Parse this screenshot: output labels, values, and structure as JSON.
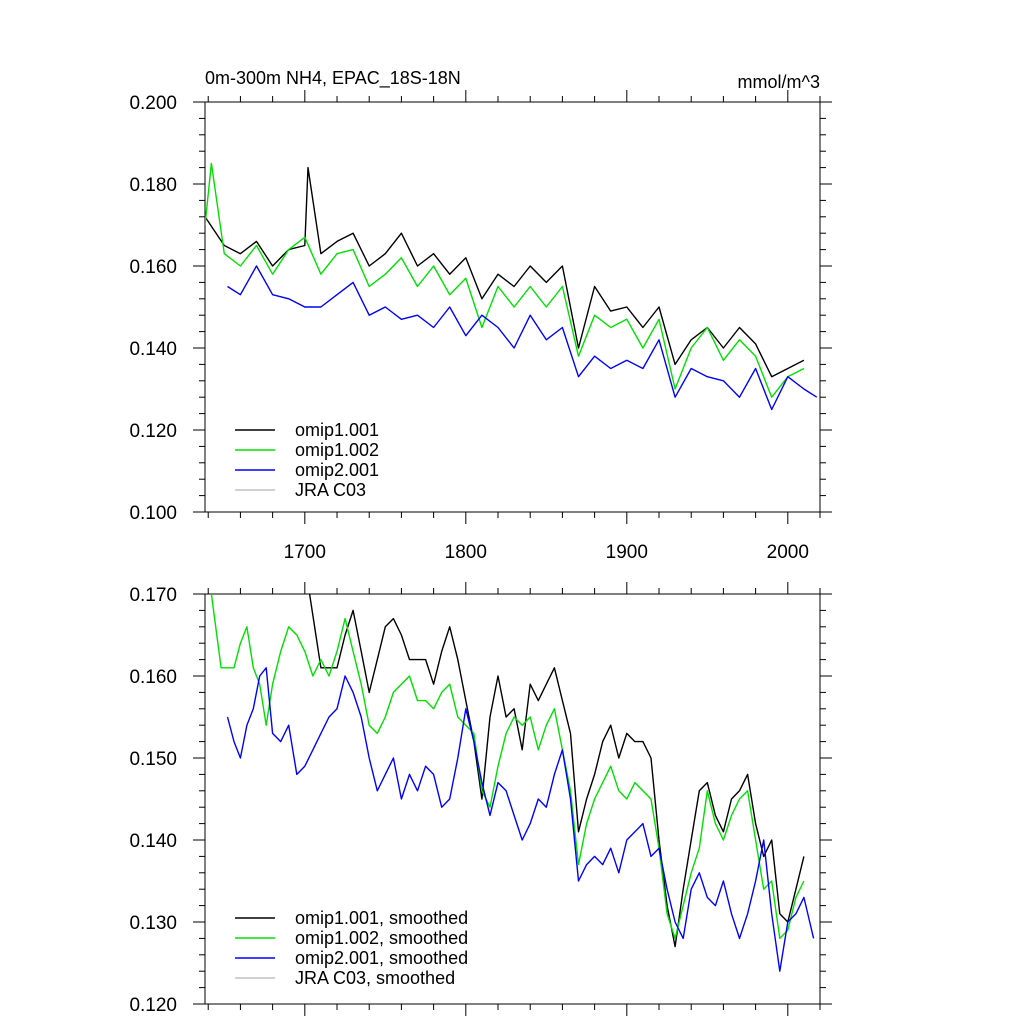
{
  "chart_data": [
    {
      "type": "line",
      "title": "0m-300m NH4, EPAC_18S-18N",
      "units": "mmol/m^3",
      "xlim": [
        1638,
        2020
      ],
      "ylim": [
        0.1,
        0.2
      ],
      "xticks": [
        1700,
        1800,
        1900,
        2000
      ],
      "yticks": [
        0.1,
        0.12,
        0.14,
        0.16,
        0.18,
        0.2
      ],
      "ytick_labels": [
        "0.100",
        "0.120",
        "0.140",
        "0.160",
        "0.180",
        "0.200"
      ],
      "legend_position": "bottom-left",
      "series": [
        {
          "name": "omip1.001",
          "color": "#000000",
          "x": [
            1638,
            1650,
            1660,
            1670,
            1680,
            1690,
            1700,
            1702,
            1710,
            1720,
            1730,
            1740,
            1750,
            1760,
            1770,
            1780,
            1790,
            1800,
            1810,
            1820,
            1830,
            1840,
            1850,
            1860,
            1870,
            1880,
            1890,
            1900,
            1910,
            1920,
            1930,
            1940,
            1950,
            1960,
            1970,
            1980,
            1990,
            2000,
            2010
          ],
          "y": [
            0.172,
            0.165,
            0.163,
            0.166,
            0.16,
            0.164,
            0.165,
            0.184,
            0.163,
            0.166,
            0.168,
            0.16,
            0.163,
            0.168,
            0.16,
            0.163,
            0.158,
            0.162,
            0.152,
            0.158,
            0.155,
            0.16,
            0.156,
            0.16,
            0.14,
            0.155,
            0.149,
            0.15,
            0.145,
            0.15,
            0.136,
            0.142,
            0.145,
            0.14,
            0.145,
            0.141,
            0.133,
            0.135,
            0.137
          ]
        },
        {
          "name": "omip1.002",
          "color": "#00e000",
          "x": [
            1638,
            1642,
            1650,
            1660,
            1670,
            1680,
            1690,
            1700,
            1710,
            1720,
            1730,
            1740,
            1750,
            1760,
            1770,
            1780,
            1790,
            1800,
            1810,
            1820,
            1830,
            1840,
            1850,
            1860,
            1870,
            1880,
            1890,
            1900,
            1910,
            1920,
            1930,
            1940,
            1950,
            1960,
            1970,
            1980,
            1990,
            2000,
            2010
          ],
          "y": [
            0.17,
            0.185,
            0.163,
            0.16,
            0.165,
            0.158,
            0.164,
            0.167,
            0.158,
            0.163,
            0.164,
            0.155,
            0.158,
            0.162,
            0.155,
            0.16,
            0.153,
            0.157,
            0.145,
            0.155,
            0.15,
            0.155,
            0.15,
            0.155,
            0.138,
            0.148,
            0.145,
            0.147,
            0.14,
            0.147,
            0.13,
            0.14,
            0.145,
            0.137,
            0.142,
            0.138,
            0.128,
            0.133,
            0.135
          ]
        },
        {
          "name": "omip2.001",
          "color": "#0000ff",
          "x": [
            1652,
            1660,
            1670,
            1680,
            1690,
            1700,
            1710,
            1720,
            1730,
            1740,
            1750,
            1760,
            1770,
            1780,
            1790,
            1800,
            1810,
            1820,
            1830,
            1840,
            1850,
            1860,
            1870,
            1880,
            1890,
            1900,
            1910,
            1920,
            1930,
            1940,
            1950,
            1960,
            1970,
            1980,
            1990,
            2000,
            2010,
            2018
          ],
          "y": [
            0.155,
            0.153,
            0.16,
            0.153,
            0.152,
            0.15,
            0.15,
            0.153,
            0.156,
            0.148,
            0.15,
            0.147,
            0.148,
            0.145,
            0.15,
            0.143,
            0.148,
            0.145,
            0.14,
            0.148,
            0.142,
            0.145,
            0.133,
            0.138,
            0.135,
            0.137,
            0.135,
            0.142,
            0.128,
            0.135,
            0.133,
            0.132,
            0.128,
            0.135,
            0.125,
            0.133,
            0.13,
            0.128
          ]
        },
        {
          "name": "JRA C03",
          "color": "#c0c0c0",
          "x": [],
          "y": []
        }
      ]
    },
    {
      "type": "line",
      "title": "",
      "xlim": [
        1638,
        2020
      ],
      "ylim": [
        0.12,
        0.17
      ],
      "xticks": [
        1700,
        1800,
        1900,
        2000
      ],
      "yticks": [
        0.12,
        0.13,
        0.14,
        0.15,
        0.16,
        0.17
      ],
      "ytick_labels": [
        "0.120",
        "0.130",
        "0.140",
        "0.150",
        "0.160",
        "0.170"
      ],
      "legend_position": "bottom-left",
      "series": [
        {
          "name": "omip1.001, smoothed",
          "color": "#000000",
          "x": [
            1703,
            1710,
            1715,
            1720,
            1725,
            1730,
            1735,
            1740,
            1745,
            1750,
            1755,
            1760,
            1765,
            1770,
            1775,
            1780,
            1785,
            1790,
            1795,
            1800,
            1805,
            1810,
            1815,
            1820,
            1825,
            1830,
            1835,
            1840,
            1845,
            1850,
            1855,
            1860,
            1865,
            1870,
            1875,
            1880,
            1885,
            1890,
            1895,
            1900,
            1905,
            1910,
            1915,
            1920,
            1925,
            1930,
            1935,
            1940,
            1945,
            1950,
            1955,
            1960,
            1965,
            1970,
            1975,
            1980,
            1985,
            1990,
            1995,
            2000,
            2005,
            2010
          ],
          "y": [
            0.17,
            0.161,
            0.161,
            0.161,
            0.165,
            0.168,
            0.163,
            0.158,
            0.162,
            0.166,
            0.167,
            0.165,
            0.162,
            0.162,
            0.162,
            0.159,
            0.163,
            0.166,
            0.162,
            0.157,
            0.152,
            0.145,
            0.155,
            0.16,
            0.155,
            0.156,
            0.151,
            0.159,
            0.157,
            0.159,
            0.161,
            0.157,
            0.153,
            0.141,
            0.145,
            0.148,
            0.152,
            0.154,
            0.15,
            0.153,
            0.152,
            0.152,
            0.15,
            0.14,
            0.132,
            0.127,
            0.134,
            0.14,
            0.146,
            0.147,
            0.143,
            0.141,
            0.145,
            0.146,
            0.148,
            0.142,
            0.138,
            0.14,
            0.131,
            0.13,
            0.134,
            0.138
          ]
        },
        {
          "name": "omip1.002, smoothed",
          "color": "#00e000",
          "x": [
            1642,
            1648,
            1652,
            1656,
            1660,
            1664,
            1668,
            1672,
            1676,
            1680,
            1685,
            1690,
            1695,
            1700,
            1705,
            1710,
            1715,
            1720,
            1725,
            1730,
            1735,
            1740,
            1745,
            1750,
            1755,
            1760,
            1765,
            1770,
            1775,
            1780,
            1785,
            1790,
            1795,
            1800,
            1805,
            1810,
            1815,
            1820,
            1825,
            1830,
            1835,
            1840,
            1845,
            1850,
            1855,
            1860,
            1865,
            1870,
            1875,
            1880,
            1885,
            1890,
            1895,
            1900,
            1905,
            1910,
            1915,
            1920,
            1925,
            1930,
            1935,
            1940,
            1945,
            1950,
            1955,
            1960,
            1965,
            1970,
            1975,
            1980,
            1985,
            1990,
            1995,
            2000,
            2005,
            2010
          ],
          "y": [
            0.17,
            0.161,
            0.161,
            0.161,
            0.164,
            0.166,
            0.161,
            0.159,
            0.154,
            0.159,
            0.163,
            0.166,
            0.165,
            0.163,
            0.16,
            0.162,
            0.16,
            0.163,
            0.167,
            0.163,
            0.159,
            0.154,
            0.153,
            0.155,
            0.158,
            0.159,
            0.16,
            0.157,
            0.157,
            0.156,
            0.158,
            0.159,
            0.155,
            0.154,
            0.153,
            0.146,
            0.144,
            0.149,
            0.153,
            0.155,
            0.154,
            0.155,
            0.151,
            0.154,
            0.156,
            0.151,
            0.146,
            0.137,
            0.142,
            0.145,
            0.147,
            0.149,
            0.146,
            0.145,
            0.147,
            0.146,
            0.145,
            0.139,
            0.131,
            0.128,
            0.132,
            0.136,
            0.139,
            0.146,
            0.142,
            0.14,
            0.143,
            0.145,
            0.146,
            0.14,
            0.134,
            0.135,
            0.128,
            0.129,
            0.133,
            0.135
          ]
        },
        {
          "name": "omip2.001, smoothed",
          "color": "#0000ff",
          "x": [
            1652,
            1656,
            1660,
            1664,
            1668,
            1672,
            1676,
            1680,
            1685,
            1690,
            1695,
            1700,
            1705,
            1710,
            1715,
            1720,
            1725,
            1730,
            1735,
            1740,
            1745,
            1750,
            1755,
            1760,
            1765,
            1770,
            1775,
            1780,
            1785,
            1790,
            1795,
            1800,
            1805,
            1810,
            1815,
            1820,
            1825,
            1830,
            1835,
            1840,
            1845,
            1850,
            1855,
            1860,
            1865,
            1870,
            1875,
            1880,
            1885,
            1890,
            1895,
            1900,
            1905,
            1910,
            1915,
            1920,
            1925,
            1930,
            1935,
            1940,
            1945,
            1950,
            1955,
            1960,
            1965,
            1970,
            1975,
            1980,
            1985,
            1990,
            1995,
            2000,
            2005,
            2010,
            2016
          ],
          "y": [
            0.155,
            0.152,
            0.15,
            0.154,
            0.156,
            0.16,
            0.161,
            0.153,
            0.152,
            0.154,
            0.148,
            0.149,
            0.151,
            0.153,
            0.155,
            0.156,
            0.16,
            0.158,
            0.155,
            0.15,
            0.146,
            0.148,
            0.15,
            0.145,
            0.148,
            0.146,
            0.149,
            0.148,
            0.144,
            0.145,
            0.15,
            0.156,
            0.152,
            0.147,
            0.143,
            0.147,
            0.146,
            0.143,
            0.14,
            0.142,
            0.145,
            0.144,
            0.148,
            0.151,
            0.145,
            0.135,
            0.137,
            0.138,
            0.137,
            0.139,
            0.136,
            0.14,
            0.141,
            0.142,
            0.138,
            0.139,
            0.134,
            0.13,
            0.128,
            0.134,
            0.136,
            0.133,
            0.132,
            0.135,
            0.131,
            0.128,
            0.131,
            0.135,
            0.14,
            0.131,
            0.124,
            0.13,
            0.131,
            0.133,
            0.128
          ]
        },
        {
          "name": "JRA C03, smoothed",
          "color": "#c0c0c0",
          "x": [],
          "y": []
        }
      ]
    }
  ]
}
